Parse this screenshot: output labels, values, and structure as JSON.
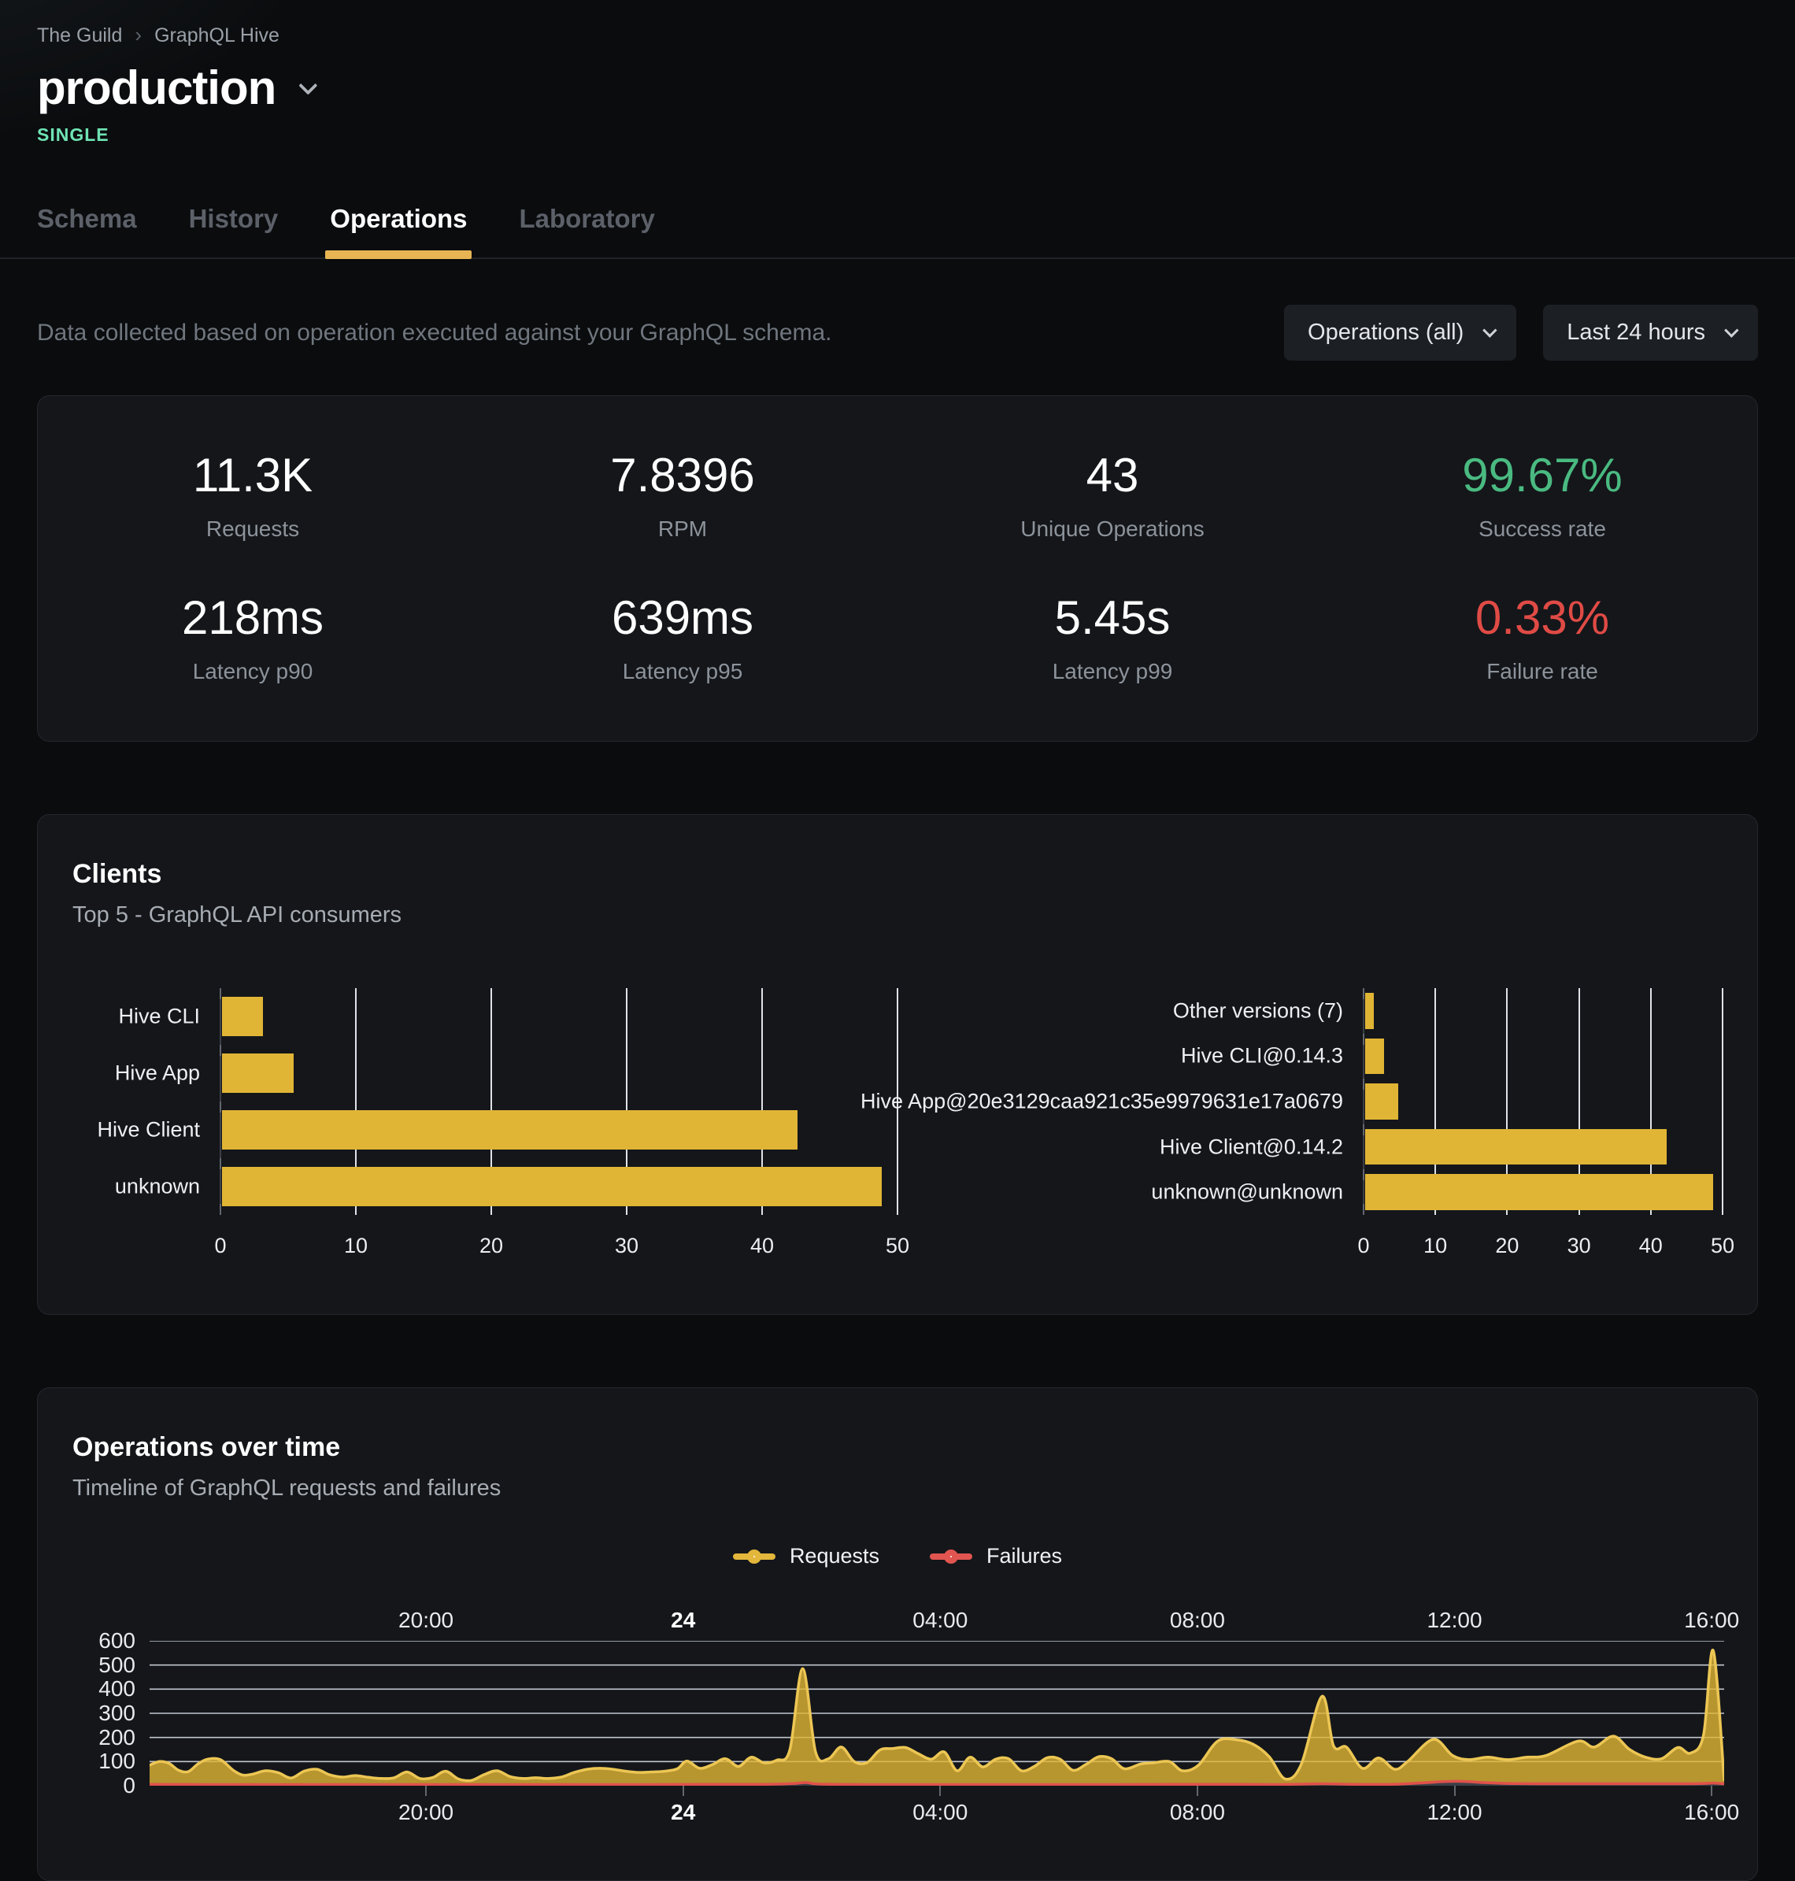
{
  "breadcrumb": {
    "items": [
      "The Guild",
      "GraphQL Hive"
    ],
    "separator": "›"
  },
  "header": {
    "title": "production",
    "badge": "SINGLE"
  },
  "tabs": [
    {
      "label": "Schema",
      "active": false
    },
    {
      "label": "History",
      "active": false
    },
    {
      "label": "Operations",
      "active": true
    },
    {
      "label": "Laboratory",
      "active": false
    }
  ],
  "filters": {
    "description": "Data collected based on operation executed against your GraphQL schema.",
    "operations_dropdown": "Operations (all)",
    "period_dropdown": "Last 24 hours"
  },
  "stats": [
    {
      "value": "11.3K",
      "label": "Requests",
      "color": "white"
    },
    {
      "value": "7.8396",
      "label": "RPM",
      "color": "white"
    },
    {
      "value": "43",
      "label": "Unique Operations",
      "color": "white"
    },
    {
      "value": "99.67%",
      "label": "Success rate",
      "color": "green"
    },
    {
      "value": "218ms",
      "label": "Latency p90",
      "color": "white"
    },
    {
      "value": "639ms",
      "label": "Latency p95",
      "color": "white"
    },
    {
      "value": "5.45s",
      "label": "Latency p99",
      "color": "white"
    },
    {
      "value": "0.33%",
      "label": "Failure rate",
      "color": "red"
    }
  ],
  "clients_panel": {
    "title": "Clients",
    "subtitle": "Top 5 - GraphQL API consumers"
  },
  "timeline_panel": {
    "title": "Operations over time",
    "subtitle": "Timeline of GraphQL requests and failures",
    "legend": [
      {
        "name": "Requests",
        "color": "#e3b63c"
      },
      {
        "name": "Failures",
        "color": "#e15550"
      }
    ]
  },
  "colors": {
    "accent_yellow": "#e0b535",
    "area_stroke": "#ecc654",
    "failures_red": "#e0514b",
    "failures_fill": "#3c4047",
    "success_green": "#4aba81",
    "failure_rate_red": "#e04b45",
    "badge_mint": "#6fe3b4",
    "gridline": "#ccd0d8",
    "panel_bg": "#14161a"
  },
  "chart_data": [
    {
      "type": "bar",
      "orientation": "horizontal",
      "title": "Clients by name",
      "categories": [
        "Hive CLI",
        "Hive App",
        "Hive Client",
        "unknown"
      ],
      "values": [
        3,
        5.3,
        42.5,
        48.7
      ],
      "xlim": [
        0,
        50
      ],
      "xticks": [
        0,
        10,
        20,
        30,
        40,
        50
      ],
      "bar_color": "#e0b535"
    },
    {
      "type": "bar",
      "orientation": "horizontal",
      "title": "Clients by version",
      "categories": [
        "Other versions (7)",
        "Hive CLI@0.14.3",
        "Hive App@20e3129caa921c35e9979631e17a0679",
        "Hive Client@0.14.2",
        "unknown@unknown"
      ],
      "values": [
        1.2,
        2.6,
        4.6,
        42,
        48.5
      ],
      "xlim": [
        0,
        50
      ],
      "xticks": [
        0,
        10,
        20,
        30,
        40,
        50
      ],
      "bar_color": "#e0b535"
    },
    {
      "type": "area",
      "title": "Operations over time",
      "x_hours_range": [
        -8.3,
        16.17
      ],
      "ylim": [
        0,
        600
      ],
      "yticks": [
        0,
        100,
        200,
        300,
        400,
        500,
        600
      ],
      "xticks": [
        {
          "t": -4,
          "label": "20:00",
          "bold": false
        },
        {
          "t": 0,
          "label": "24",
          "bold": true
        },
        {
          "t": 4,
          "label": "04:00",
          "bold": false
        },
        {
          "t": 8,
          "label": "08:00",
          "bold": false
        },
        {
          "t": 12,
          "label": "12:00",
          "bold": false
        },
        {
          "t": 16,
          "label": "16:00",
          "bold": false
        }
      ],
      "series": [
        {
          "name": "Requests",
          "color": "#ecc654",
          "fill": "#e0b535",
          "fill_opacity": 0.8,
          "points": [
            [
              -8.3,
              85
            ],
            [
              -8.15,
              100
            ],
            [
              -8,
              93
            ],
            [
              -7.85,
              64
            ],
            [
              -7.7,
              58
            ],
            [
              -7.55,
              90
            ],
            [
              -7.4,
              110
            ],
            [
              -7.2,
              108
            ],
            [
              -7,
              64
            ],
            [
              -6.85,
              44
            ],
            [
              -6.7,
              48
            ],
            [
              -6.5,
              62
            ],
            [
              -6.3,
              54
            ],
            [
              -6.1,
              32
            ],
            [
              -5.9,
              60
            ],
            [
              -5.7,
              68
            ],
            [
              -5.5,
              45
            ],
            [
              -5.3,
              36
            ],
            [
              -5.1,
              42
            ],
            [
              -4.9,
              35
            ],
            [
              -4.7,
              30
            ],
            [
              -4.5,
              33
            ],
            [
              -4.3,
              57
            ],
            [
              -4.1,
              30
            ],
            [
              -3.9,
              34
            ],
            [
              -3.7,
              60
            ],
            [
              -3.5,
              28
            ],
            [
              -3.3,
              22
            ],
            [
              -3.1,
              46
            ],
            [
              -2.9,
              62
            ],
            [
              -2.7,
              38
            ],
            [
              -2.5,
              30
            ],
            [
              -2.3,
              33
            ],
            [
              -2.1,
              30
            ],
            [
              -1.9,
              36
            ],
            [
              -1.7,
              55
            ],
            [
              -1.5,
              68
            ],
            [
              -1.3,
              72
            ],
            [
              -1.1,
              68
            ],
            [
              -0.9,
              60
            ],
            [
              -0.7,
              55
            ],
            [
              -0.5,
              57
            ],
            [
              -0.3,
              60
            ],
            [
              -0.1,
              70
            ],
            [
              0.05,
              102
            ],
            [
              0.25,
              72
            ],
            [
              0.45,
              88
            ],
            [
              0.65,
              112
            ],
            [
              0.85,
              80
            ],
            [
              1.05,
              118
            ],
            [
              1.25,
              95
            ],
            [
              1.45,
              106
            ],
            [
              1.65,
              148
            ],
            [
              1.85,
              485
            ],
            [
              2.05,
              140
            ],
            [
              2.25,
              112
            ],
            [
              2.45,
              160
            ],
            [
              2.65,
              100
            ],
            [
              2.85,
              96
            ],
            [
              3.05,
              148
            ],
            [
              3.25,
              154
            ],
            [
              3.45,
              158
            ],
            [
              3.65,
              132
            ],
            [
              3.85,
              110
            ],
            [
              4.05,
              140
            ],
            [
              4.25,
              62
            ],
            [
              4.45,
              118
            ],
            [
              4.65,
              78
            ],
            [
              4.85,
              110
            ],
            [
              5.05,
              112
            ],
            [
              5.25,
              62
            ],
            [
              5.45,
              80
            ],
            [
              5.65,
              116
            ],
            [
              5.85,
              110
            ],
            [
              6.05,
              64
            ],
            [
              6.25,
              88
            ],
            [
              6.45,
              120
            ],
            [
              6.65,
              112
            ],
            [
              6.85,
              70
            ],
            [
              7.1,
              90
            ],
            [
              7.3,
              95
            ],
            [
              7.55,
              100
            ],
            [
              7.75,
              62
            ],
            [
              8,
              85
            ],
            [
              8.3,
              185
            ],
            [
              8.6,
              190
            ],
            [
              8.85,
              172
            ],
            [
              9.1,
              120
            ],
            [
              9.35,
              28
            ],
            [
              9.6,
              90
            ],
            [
              9.92,
              370
            ],
            [
              10.1,
              165
            ],
            [
              10.3,
              160
            ],
            [
              10.55,
              72
            ],
            [
              10.8,
              115
            ],
            [
              11.05,
              68
            ],
            [
              11.25,
              100
            ],
            [
              11.65,
              192
            ],
            [
              11.95,
              125
            ],
            [
              12.2,
              108
            ],
            [
              12.5,
              118
            ],
            [
              12.8,
              108
            ],
            [
              13.1,
              118
            ],
            [
              13.4,
              125
            ],
            [
              13.9,
              185
            ],
            [
              14.15,
              160
            ],
            [
              14.45,
              205
            ],
            [
              14.7,
              150
            ],
            [
              14.95,
              118
            ],
            [
              15.2,
              112
            ],
            [
              15.45,
              158
            ],
            [
              15.65,
              135
            ],
            [
              15.85,
              210
            ],
            [
              16,
              560
            ],
            [
              16.17,
              25
            ]
          ]
        },
        {
          "name": "Failures",
          "color": "#e0514b",
          "fill": "#3c4047",
          "fill_opacity": 1,
          "points": [
            [
              -8.3,
              6
            ],
            [
              -7.5,
              5
            ],
            [
              -6.5,
              5
            ],
            [
              -5.5,
              5
            ],
            [
              -4.5,
              5
            ],
            [
              -3.5,
              5
            ],
            [
              -2.5,
              5
            ],
            [
              -1.5,
              5
            ],
            [
              -0.5,
              5
            ],
            [
              0.5,
              6
            ],
            [
              1.3,
              6
            ],
            [
              1.7,
              9
            ],
            [
              1.9,
              13
            ],
            [
              2.1,
              7
            ],
            [
              2.8,
              5
            ],
            [
              3.6,
              5
            ],
            [
              4.4,
              5
            ],
            [
              5.2,
              5
            ],
            [
              6,
              5
            ],
            [
              6.8,
              5
            ],
            [
              7.6,
              6
            ],
            [
              8.4,
              6
            ],
            [
              9.2,
              5
            ],
            [
              9.92,
              8
            ],
            [
              10.4,
              6
            ],
            [
              11,
              6
            ],
            [
              11.5,
              12
            ],
            [
              11.8,
              17
            ],
            [
              12.1,
              18
            ],
            [
              12.5,
              12
            ],
            [
              12.9,
              9
            ],
            [
              13.5,
              8
            ],
            [
              14.1,
              8
            ],
            [
              14.7,
              8
            ],
            [
              15.3,
              8
            ],
            [
              15.8,
              9
            ],
            [
              16,
              11
            ],
            [
              16.17,
              8
            ]
          ]
        }
      ]
    }
  ]
}
